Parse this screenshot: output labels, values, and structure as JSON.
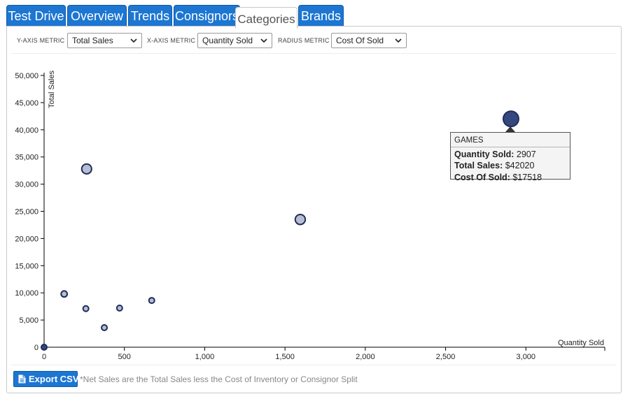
{
  "tabs": [
    {
      "label": "Test Drive",
      "active": false
    },
    {
      "label": "Overview",
      "active": false
    },
    {
      "label": "Trends",
      "active": false
    },
    {
      "label": "Consignors",
      "active": false
    },
    {
      "label": "Categories",
      "active": true
    },
    {
      "label": "Brands",
      "active": false
    }
  ],
  "controls": {
    "y_label": "Y-AXIS METRIC",
    "y_value": "Total Sales",
    "x_label": "X-AXIS METRIC",
    "x_value": "Quantity Sold",
    "r_label": "RADIUS METRIC",
    "r_value": "Cost Of Sold"
  },
  "tooltip": {
    "title": "GAMES",
    "qty_label": "Quantity Sold:",
    "qty_value": "2907",
    "sales_label": "Total Sales:",
    "sales_value": "$42020",
    "cost_label": "Cost Of Sold:",
    "cost_value": "$17518"
  },
  "footer": {
    "export_label": "Export CSV",
    "note": "*Net Sales are the Total Sales less the Cost of Inventory or Consignor Split"
  },
  "colors": {
    "tab_blue": "#1c76d2",
    "bubble_fill": "#b7bdd2",
    "bubble_stroke": "#1e2d5c",
    "bubble_highlight": "#34477e"
  },
  "chart_data": {
    "type": "scatter",
    "title": "",
    "xlabel": "Quantity Sold",
    "ylabel": "Total Sales",
    "xlim": [
      0,
      3500
    ],
    "ylim": [
      0,
      50000
    ],
    "x_ticks": [
      0,
      500,
      1000,
      1500,
      2000,
      2500,
      3000
    ],
    "x_tick_labels": [
      "0",
      "500",
      "1,000",
      "1,500",
      "2,000",
      "2,500",
      "3,000"
    ],
    "y_ticks": [
      0,
      5000,
      10000,
      15000,
      20000,
      25000,
      30000,
      35000,
      40000,
      45000,
      50000
    ],
    "y_tick_labels": [
      "0",
      "5,000",
      "10,000",
      "15,000",
      "20,000",
      "25,000",
      "30,000",
      "35,000",
      "40,000",
      "45,000",
      "50,000"
    ],
    "grid": false,
    "points": [
      {
        "x": 0,
        "y": 0,
        "cost": 900,
        "highlight": true
      },
      {
        "x": 125,
        "y": 9800,
        "cost": 2800,
        "highlight": false
      },
      {
        "x": 260,
        "y": 7100,
        "cost": 1600,
        "highlight": false
      },
      {
        "x": 265,
        "y": 32800,
        "cost": 7200,
        "highlight": false
      },
      {
        "x": 375,
        "y": 3600,
        "cost": 900,
        "highlight": false
      },
      {
        "x": 470,
        "y": 7200,
        "cost": 1700,
        "highlight": false
      },
      {
        "x": 670,
        "y": 8600,
        "cost": 2000,
        "highlight": false
      },
      {
        "x": 1595,
        "y": 23500,
        "cost": 7500,
        "highlight": false
      },
      {
        "x": 2907,
        "y": 42020,
        "cost": 17518,
        "highlight": true,
        "label": "GAMES"
      }
    ]
  }
}
